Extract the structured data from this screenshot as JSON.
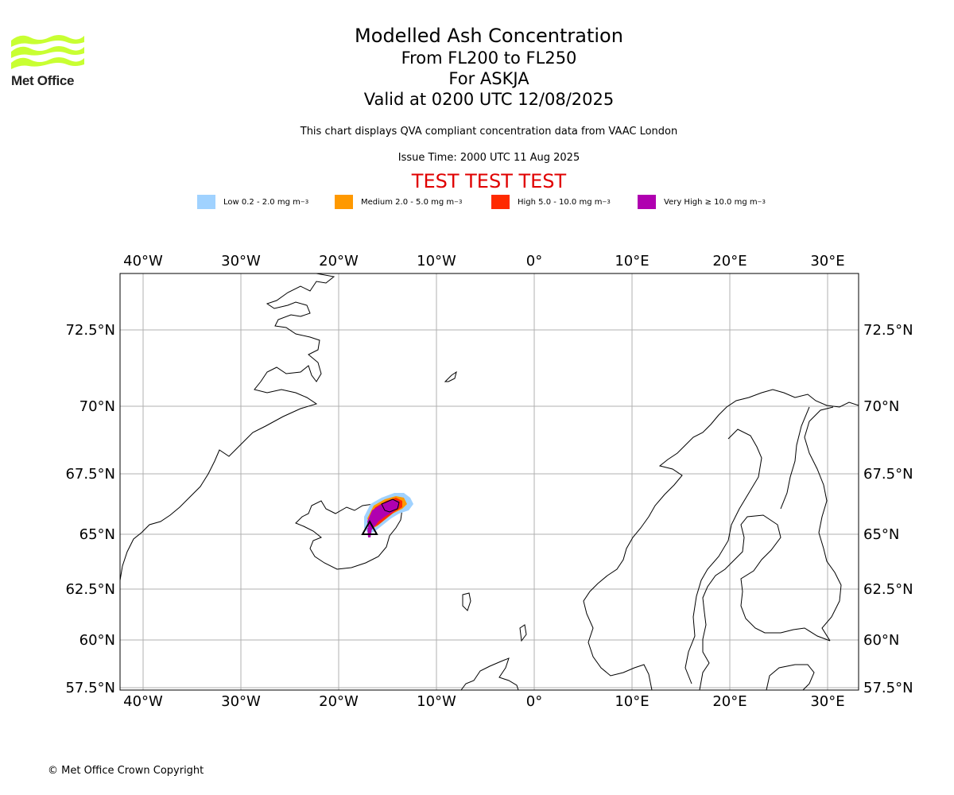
{
  "branding": {
    "logo_text": "Met Office",
    "logo_color": "#c8ff32"
  },
  "titles": {
    "main": "Modelled Ash Concentration",
    "levels": "From FL200 to FL250",
    "volcano": "For ASKJA",
    "valid": "Valid at 0200 UTC 12/08/2025"
  },
  "notes": {
    "description": "This chart displays QVA compliant concentration data from VAAC London",
    "issue_time": "Issue Time: 2000 UTC 11 Aug 2025",
    "test_banner": "TEST TEST TEST"
  },
  "legend": [
    {
      "label": "Low 0.2 - 2.0 mg m",
      "unit_exp": "−3",
      "color": "#a0d2ff"
    },
    {
      "label": "Medium 2.0 - 5.0 mg m",
      "unit_exp": "−3",
      "color": "#ff9900"
    },
    {
      "label": "High 5.0 - 10.0 mg m",
      "unit_exp": "−3",
      "color": "#ff2a00"
    },
    {
      "label": "Very High ≥ 10.0 mg m",
      "unit_exp": "−3",
      "color": "#b000b0"
    }
  ],
  "map": {
    "lon_ticks": [
      "40°W",
      "30°W",
      "20°W",
      "10°W",
      "0°",
      "10°E",
      "20°E",
      "30°E"
    ],
    "lat_ticks": [
      "72.5°N",
      "70°N",
      "67.5°N",
      "65°N",
      "62.5°N",
      "60°N",
      "57.5°N"
    ],
    "volcano_marker": "triangle-icon",
    "volcano_location": {
      "lat": 65.03,
      "lon": -16.75
    }
  },
  "footer": {
    "copyright": "© Met Office Crown Copyright"
  }
}
